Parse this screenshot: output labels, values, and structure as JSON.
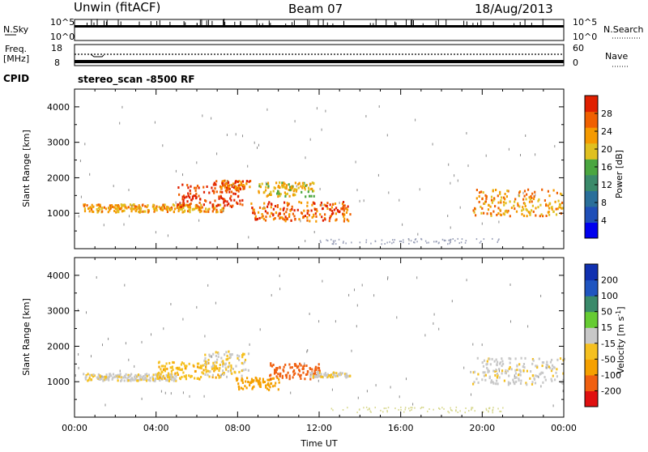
{
  "header": {
    "station": "Unwin (fitACF)",
    "beam": "Beam 07",
    "date": "18/Aug/2013"
  },
  "status_rows": {
    "nsky_label": "N.Sky",
    "nsky_scale_top": "10^5",
    "nsky_scale_bottom": "10^0",
    "nsearch_label": "N.Search",
    "nsearch_scale_top": "10^5",
    "nsearch_scale_bottom": "10^0",
    "freq_label": "Freq.",
    "freq_unit": "[MHz]",
    "freq_top": "18",
    "freq_bottom": "8",
    "nave_label": "Nave",
    "nave_top": "60",
    "nave_bottom": "0",
    "cpid_label": "CPID",
    "cpid_value": "stereo_scan -8500 RF"
  },
  "colors": {
    "power_scale": [
      "#0000ee",
      "#1f4fb8",
      "#2a6f9a",
      "#3a8a6a",
      "#4aa640",
      "#e0c020",
      "#f59a00",
      "#f06000",
      "#e02000"
    ],
    "velocity_scale": [
      "#1030b0",
      "#1f55c0",
      "#3a8a6a",
      "#66cc33",
      "#c8c8c8",
      "#f5c020",
      "#f5a000",
      "#f06010",
      "#e01010"
    ]
  },
  "chart_data": [
    {
      "type": "heatmap",
      "name": "power",
      "ylabel": "Slant Range [km]",
      "xlabel": "",
      "xlim": [
        0,
        24
      ],
      "ylim": [
        0,
        4500
      ],
      "yticks": [
        1000,
        2000,
        3000,
        4000
      ],
      "colorbar": {
        "label": "Power [dB]",
        "range": [
          0,
          32
        ],
        "ticks": [
          "4",
          "8",
          "12",
          "16",
          "20",
          "24",
          "28"
        ]
      },
      "bands": [
        {
          "x": [
            0.4,
            7.3
          ],
          "y": [
            1060,
            1280
          ],
          "level": 7
        },
        {
          "x": [
            5.0,
            8.2
          ],
          "y": [
            1200,
            1850
          ],
          "level": 9
        },
        {
          "x": [
            6.8,
            8.6
          ],
          "y": [
            1700,
            1950
          ],
          "level": 8
        },
        {
          "x": [
            8.6,
            13.5
          ],
          "y": [
            800,
            1350
          ],
          "level": 8
        },
        {
          "x": [
            8.9,
            11.8
          ],
          "y": [
            1500,
            1900
          ],
          "level": 6
        },
        {
          "x": [
            19.5,
            24.0
          ],
          "y": [
            950,
            1700
          ],
          "level": 7
        }
      ]
    },
    {
      "type": "heatmap",
      "name": "velocity",
      "ylabel": "Slant Range [km]",
      "xlabel": "Time UT",
      "xlim": [
        0,
        24
      ],
      "ylim": [
        0,
        4500
      ],
      "yticks": [
        1000,
        2000,
        3000,
        4000
      ],
      "xticks": [
        "00:00",
        "04:00",
        "08:00",
        "12:00",
        "16:00",
        "20:00",
        "00:00"
      ],
      "colorbar": {
        "label": "Velocity [m s",
        "label_sup": "-1",
        "label_end": "]",
        "range": [
          -250,
          250
        ],
        "ticks": [
          "200",
          "100",
          "50",
          "15",
          "-15",
          "-50",
          "-100",
          "-200"
        ]
      },
      "bands": [
        {
          "x": [
            0.4,
            5.0
          ],
          "y": [
            1050,
            1250
          ],
          "velocity": -5
        },
        {
          "x": [
            4.0,
            7.3
          ],
          "y": [
            1100,
            1600
          ],
          "velocity": -40
        },
        {
          "x": [
            6.3,
            8.5
          ],
          "y": [
            1200,
            1900
          ],
          "velocity": -10
        },
        {
          "x": [
            7.9,
            10.0
          ],
          "y": [
            800,
            1150
          ],
          "velocity": -80
        },
        {
          "x": [
            9.5,
            12.0
          ],
          "y": [
            1100,
            1550
          ],
          "velocity": -180
        },
        {
          "x": [
            11.5,
            13.5
          ],
          "y": [
            1150,
            1300
          ],
          "velocity": -5
        },
        {
          "x": [
            19.5,
            24.0
          ],
          "y": [
            950,
            1700
          ],
          "velocity": -5
        }
      ]
    }
  ]
}
